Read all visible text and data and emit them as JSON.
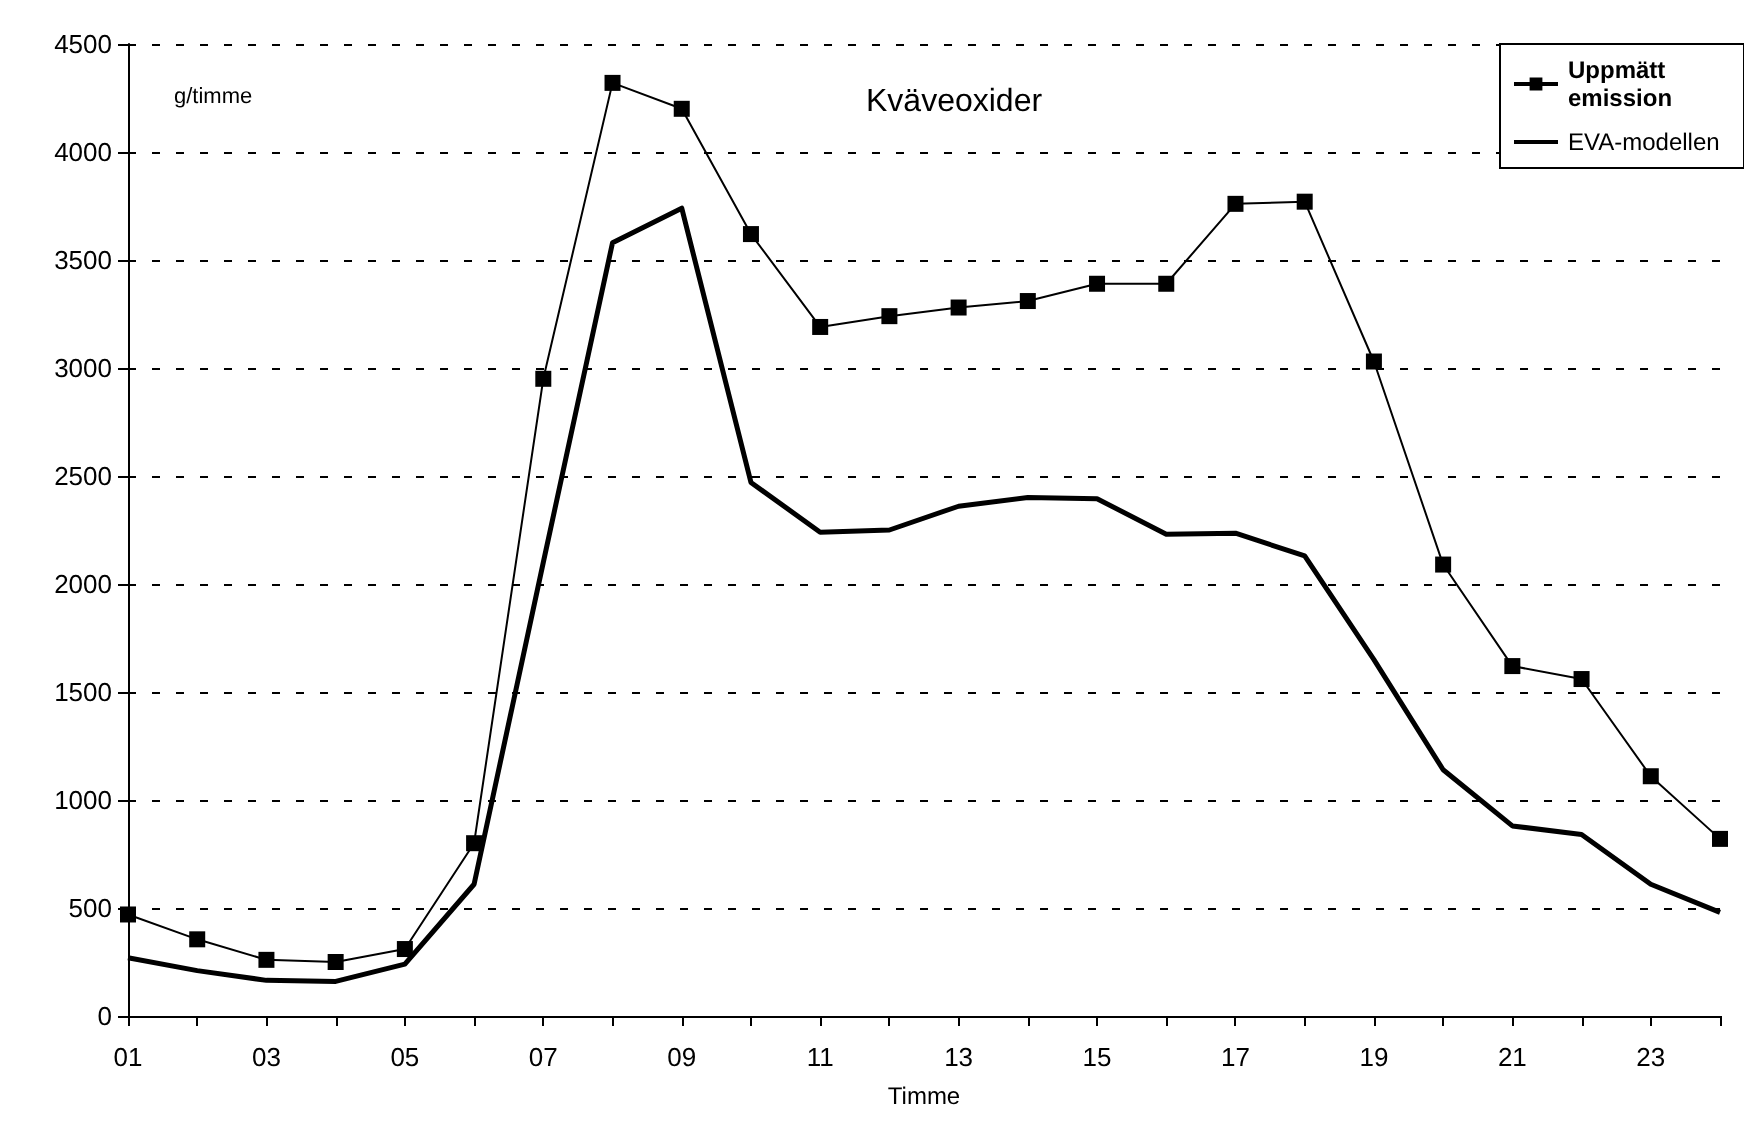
{
  "chart_data": {
    "type": "line",
    "title": "Kväveoxider",
    "ylabel": "g/timme",
    "xlabel": "Timme",
    "categories": [
      "01",
      null,
      "03",
      null,
      "05",
      null,
      "07",
      null,
      "09",
      null,
      "11",
      null,
      "13",
      null,
      "15",
      null,
      "17",
      null,
      "19",
      null,
      "21",
      null,
      "23",
      null
    ],
    "series": [
      {
        "name": "Uppmätt emission",
        "color": "#000000",
        "marker": "square",
        "values": [
          470,
          355,
          260,
          250,
          310,
          800,
          2950,
          4320,
          4200,
          3620,
          3190,
          3240,
          3280,
          3310,
          3390,
          3390,
          3760,
          3770,
          3030,
          2090,
          1620,
          1560,
          1110,
          820
        ]
      },
      {
        "name": "EVA-modellen",
        "color": "#000000",
        "marker": "none",
        "values": [
          270,
          210,
          165,
          160,
          240,
          610,
          2100,
          3580,
          3740,
          2470,
          2240,
          2250,
          2360,
          2400,
          2395,
          2230,
          2235,
          2130,
          1650,
          1140,
          880,
          840,
          610,
          480
        ]
      }
    ],
    "ylim": [
      0,
      4500
    ],
    "yticks": [
      0,
      500,
      1000,
      1500,
      2000,
      2500,
      3000,
      3500,
      4000,
      4500
    ],
    "grid": "y",
    "legend": "top right"
  }
}
